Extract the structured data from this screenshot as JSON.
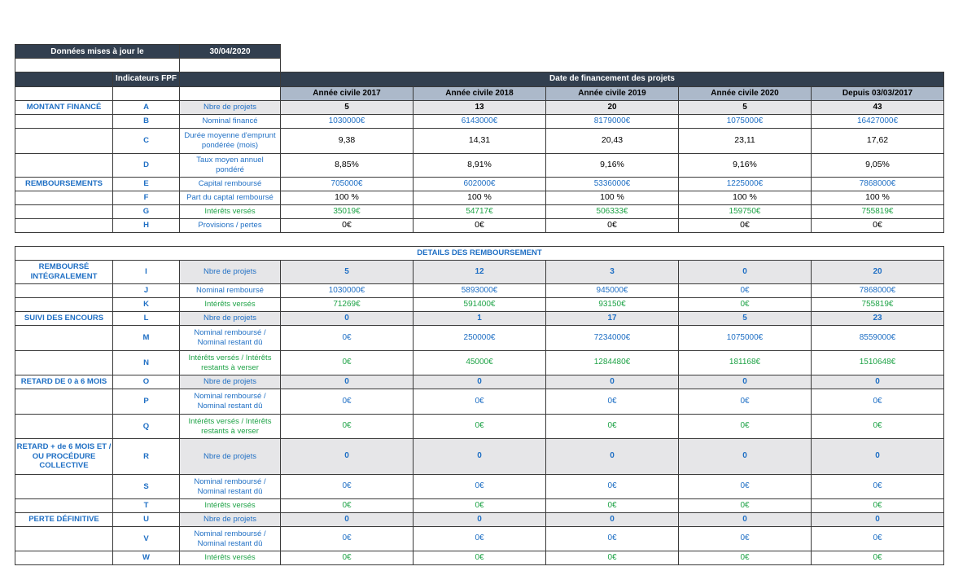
{
  "meta": {
    "updated_label": "Données mises à jour le",
    "updated_date": "30/04/2020"
  },
  "header": {
    "indicators_title": "Indicateurs FPF",
    "date_title": "Date de financement des projets",
    "years": [
      "Année civile  2017",
      "Année civile 2018",
      "Année civile 2019",
      "Année civile 2020",
      "Depuis 03/03/2017"
    ]
  },
  "details_title": "DETAILS DES REMBOURSEMENT",
  "colors": {
    "header_dark": "#323f4f",
    "header_year": "#acb9ca",
    "blue": "#1f6fc4",
    "green": "#1fa347",
    "gray_row": "#e6e6e8"
  },
  "rows1": [
    {
      "section": "MONTANT FINANCÉ",
      "code": "A",
      "label": "Nbre de projets",
      "values": [
        "5",
        "13",
        "20",
        "5",
        "43"
      ]
    },
    {
      "section": "",
      "code": "B",
      "label": "Nominal financé",
      "values": [
        "1030000€",
        "6143000€",
        "8179000€",
        "1075000€",
        "16427000€"
      ]
    },
    {
      "section": "",
      "code": "C",
      "label": "Durée moyenne d'emprunt pondérée (mois)",
      "values": [
        "9,38",
        "14,31",
        "20,43",
        "23,11",
        "17,62"
      ]
    },
    {
      "section": "",
      "code": "D",
      "label": "Taux moyen annuel pondéré",
      "values": [
        "8,85%",
        "8,91%",
        "9,16%",
        "9,16%",
        "9,05%"
      ]
    },
    {
      "section": "REMBOURSEMENTS",
      "code": "E",
      "label": "Capital remboursé",
      "values": [
        "705000€",
        "602000€",
        "5336000€",
        "1225000€",
        "7868000€"
      ]
    },
    {
      "section": "",
      "code": "F",
      "label": "Part du captal remboursé",
      "values": [
        "100 %",
        "100 %",
        "100 %",
        "100 %",
        "100 %"
      ]
    },
    {
      "section": "",
      "code": "G",
      "label": "Intérêts versés",
      "values": [
        "35019€",
        "54717€",
        "506333€",
        "159750€",
        "755819€"
      ]
    },
    {
      "section": "",
      "code": "H",
      "label": "Provisions / pertes",
      "values": [
        "0€",
        "0€",
        "0€",
        "0€",
        "0€"
      ]
    }
  ],
  "rows2": [
    {
      "section": "REMBOURSÉ INTÉGRALEMENT",
      "code": "I",
      "label": "Nbre de projets",
      "values": [
        "5",
        "12",
        "3",
        "0",
        "20"
      ]
    },
    {
      "section": "",
      "code": "J",
      "label": "Nominal remboursé",
      "values": [
        "1030000€",
        "5893000€",
        "945000€",
        "0€",
        "7868000€"
      ]
    },
    {
      "section": "",
      "code": "K",
      "label": "Intérêts versés",
      "values": [
        "71269€",
        "591400€",
        "93150€",
        "0€",
        "755819€"
      ]
    },
    {
      "section": "SUIVI DES ENCOURS",
      "code": "L",
      "label": "Nbre de projets",
      "values": [
        "0",
        "1",
        "17",
        "5",
        "23"
      ]
    },
    {
      "section": "",
      "code": "M",
      "label": "Nominal remboursé / Nominal restant dû",
      "values": [
        "0€",
        "250000€",
        "7234000€",
        "1075000€",
        "8559000€"
      ]
    },
    {
      "section": "",
      "code": "N",
      "label": "Intérêts versés / Intérêts restants à verser",
      "values": [
        "0€",
        "45000€",
        "1284480€",
        "181168€",
        "1510648€"
      ]
    },
    {
      "section": "RETARD DE 0 à 6 MOIS",
      "code": "O",
      "label": "Nbre de projets",
      "values": [
        "0",
        "0",
        "0",
        "0",
        "0"
      ]
    },
    {
      "section": "",
      "code": "P",
      "label": "Nominal remboursé / Nominal restant dû",
      "values": [
        "0€",
        "0€",
        "0€",
        "0€",
        "0€"
      ]
    },
    {
      "section": "",
      "code": "Q",
      "label": "Intérêts versés / Intérêts restants à verser",
      "values": [
        "0€",
        "0€",
        "0€",
        "0€",
        "0€"
      ]
    },
    {
      "section": "RETARD + de 6 MOIS ET / OU PROCÉDURE COLLECTIVE",
      "code": "R",
      "label": "Nbre de projets",
      "values": [
        "0",
        "0",
        "0",
        "0",
        "0"
      ]
    },
    {
      "section": "",
      "code": "S",
      "label": "Nominal remboursé / Nominal restant dû",
      "values": [
        "0€",
        "0€",
        "0€",
        "0€",
        "0€"
      ]
    },
    {
      "section": "",
      "code": "T",
      "label": "Intérêts versés",
      "values": [
        "0€",
        "0€",
        "0€",
        "0€",
        "0€"
      ]
    },
    {
      "section": "PERTE DÉFINITIVE",
      "code": "U",
      "label": "Nbre de projets",
      "values": [
        "0",
        "0",
        "0",
        "0",
        "0"
      ]
    },
    {
      "section": "",
      "code": "V",
      "label": "Nominal remboursé / Nominal restant dû",
      "values": [
        "0€",
        "0€",
        "0€",
        "0€",
        "0€"
      ]
    },
    {
      "section": "",
      "code": "W",
      "label": "Intérêts versés",
      "values": [
        "0€",
        "0€",
        "0€",
        "0€",
        "0€"
      ]
    }
  ]
}
